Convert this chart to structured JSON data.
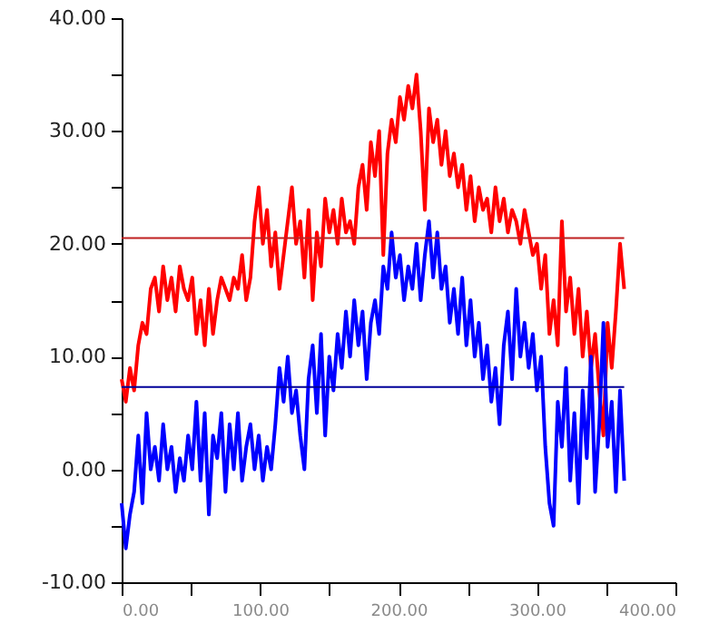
{
  "chart_data": {
    "type": "line",
    "x": [
      0,
      3,
      6,
      9,
      12,
      15,
      18,
      21,
      24,
      27,
      30,
      33,
      36,
      39,
      42,
      45,
      48,
      51,
      54,
      57,
      60,
      63,
      66,
      69,
      72,
      75,
      78,
      81,
      84,
      87,
      90,
      93,
      96,
      99,
      102,
      105,
      108,
      111,
      114,
      117,
      120,
      123,
      126,
      129,
      132,
      135,
      138,
      141,
      144,
      147,
      150,
      153,
      156,
      159,
      162,
      165,
      168,
      171,
      174,
      177,
      180,
      183,
      186,
      189,
      192,
      195,
      198,
      201,
      204,
      207,
      210,
      213,
      216,
      219,
      222,
      225,
      228,
      231,
      234,
      237,
      240,
      243,
      246,
      249,
      252,
      255,
      258,
      261,
      264,
      267,
      270,
      273,
      276,
      279,
      282,
      285,
      288,
      291,
      294,
      297,
      300,
      303,
      306,
      309,
      312,
      315,
      318,
      321,
      324,
      327,
      330,
      333,
      336,
      339,
      342,
      345,
      348,
      351,
      354,
      357,
      360,
      363
    ],
    "series": [
      {
        "color": "#ff0000",
        "values": [
          8,
          6,
          9,
          7,
          11,
          13,
          12,
          16,
          17,
          14,
          18,
          15,
          17,
          14,
          18,
          16,
          15,
          17,
          12,
          15,
          11,
          16,
          12,
          15,
          17,
          16,
          15,
          17,
          16,
          19,
          15,
          17,
          22,
          25,
          20,
          23,
          18,
          21,
          16,
          19,
          22,
          25,
          20,
          22,
          17,
          23,
          15,
          21,
          18,
          24,
          21,
          23,
          20,
          24,
          21,
          22,
          20,
          25,
          27,
          23,
          29,
          26,
          30,
          19,
          28,
          31,
          29,
          33,
          31,
          34,
          32,
          35,
          30,
          23,
          32,
          29,
          31,
          27,
          30,
          26,
          28,
          25,
          27,
          23,
          26,
          22,
          25,
          23,
          24,
          21,
          25,
          22,
          24,
          21,
          23,
          22,
          20,
          23,
          21,
          19,
          20,
          16,
          19,
          12,
          15,
          11,
          22,
          14,
          17,
          12,
          16,
          10,
          14,
          9,
          12,
          7,
          3,
          13,
          9,
          14,
          20,
          16
        ]
      },
      {
        "color": "#0000ff",
        "values": [
          -3,
          -7,
          -4,
          -2,
          3,
          -3,
          5,
          0,
          2,
          -1,
          4,
          0,
          2,
          -2,
          1,
          -1,
          3,
          0,
          6,
          -1,
          5,
          -4,
          3,
          1,
          5,
          -2,
          4,
          0,
          5,
          -1,
          2,
          4,
          0,
          3,
          -1,
          2,
          0,
          4,
          9,
          6,
          10,
          5,
          7,
          3,
          0,
          8,
          11,
          5,
          12,
          3,
          10,
          7,
          12,
          9,
          14,
          10,
          15,
          11,
          14,
          8,
          13,
          15,
          12,
          18,
          16,
          21,
          17,
          19,
          15,
          18,
          16,
          20,
          15,
          19,
          22,
          17,
          21,
          16,
          18,
          13,
          16,
          12,
          17,
          11,
          15,
          10,
          13,
          8,
          11,
          6,
          9,
          4,
          11,
          14,
          8,
          16,
          10,
          13,
          9,
          12,
          7,
          10,
          2,
          -3,
          -5,
          6,
          2,
          9,
          -1,
          5,
          -3,
          7,
          1,
          10,
          -2,
          4,
          13,
          2,
          6,
          -2,
          7,
          -1
        ]
      }
    ],
    "xlim": [
      0,
      400
    ],
    "xticks": [
      {
        "value": 0,
        "label": "0.00"
      },
      {
        "value": 50,
        "label": null
      },
      {
        "value": 100,
        "label": "100.00"
      },
      {
        "value": 150,
        "label": null
      },
      {
        "value": 200,
        "label": "200.00"
      },
      {
        "value": 250,
        "label": null
      },
      {
        "value": 300,
        "label": "300.00"
      },
      {
        "value": 350,
        "label": null
      },
      {
        "value": 400,
        "label": "400.00"
      }
    ],
    "ylim": [
      -10,
      40
    ],
    "yticks": [
      {
        "value": -10,
        "label": "-10.00"
      },
      {
        "value": -5,
        "label": null
      },
      {
        "value": 0,
        "label": "0.00"
      },
      {
        "value": 5,
        "label": null
      },
      {
        "value": 10,
        "label": "10.00"
      },
      {
        "value": 15,
        "label": null
      },
      {
        "value": 20,
        "label": "20.00"
      },
      {
        "value": 25,
        "label": null
      },
      {
        "value": 30,
        "label": "30.00"
      },
      {
        "value": 35,
        "label": null
      },
      {
        "value": 40,
        "label": "40.00"
      }
    ],
    "ref_lines": [
      {
        "axis": "y",
        "value": 20.5,
        "color": "#c02020"
      },
      {
        "axis": "y",
        "value": 7.3,
        "color": "#000099"
      }
    ],
    "grid": false
  }
}
